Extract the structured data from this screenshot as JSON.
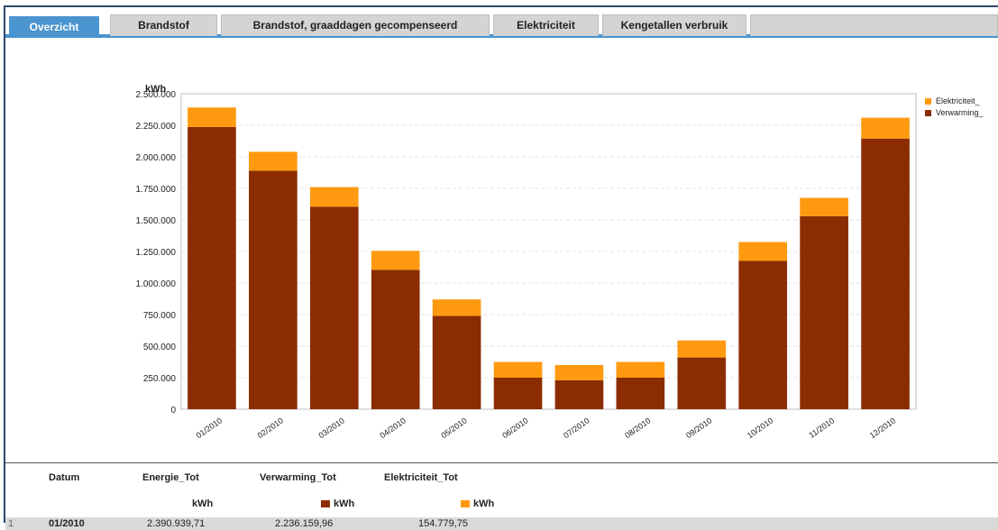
{
  "tabs": [
    {
      "label": "Overzicht"
    },
    {
      "label": "Brandstof"
    },
    {
      "label": "Brandstof, graaddagen gecompenseerd"
    },
    {
      "label": "Elektriciteit"
    },
    {
      "label": "Kengetallen verbruik"
    }
  ],
  "colors": {
    "accent": "#4a94cf",
    "verwarming": "#8b2d00",
    "elektriciteit": "#ff9a10"
  },
  "chart_data": {
    "type": "bar",
    "stacked": true,
    "ylabel": "kWh",
    "ylim": [
      0,
      2500000
    ],
    "yticks": [
      "0",
      "250.000",
      "500.000",
      "750.000",
      "1.000.000",
      "1.250.000",
      "1.500.000",
      "1.750.000",
      "2.000.000",
      "2.250.000",
      "2.500.000"
    ],
    "categories": [
      "01/2010",
      "02/2010",
      "03/2010",
      "04/2010",
      "05/2010",
      "06/2010",
      "07/2010",
      "08/2010",
      "09/2010",
      "10/2010",
      "11/2010",
      "12/2010"
    ],
    "series": [
      {
        "name": "Verwarming_",
        "values": [
          2236160,
          1890000,
          1605000,
          1105000,
          740000,
          250000,
          230000,
          250000,
          410000,
          1175000,
          1530000,
          2145000
        ]
      },
      {
        "name": "Elektriciteit_",
        "values": [
          154780,
          150000,
          155000,
          150000,
          130000,
          125000,
          120000,
          125000,
          135000,
          150000,
          145000,
          165000
        ]
      }
    ],
    "legend": "right",
    "grid": true
  },
  "table": {
    "headers": [
      "Datum",
      "Energie_Tot",
      "Verwarming_Tot",
      "Elektriciteit_Tot"
    ],
    "units": [
      "kWh",
      "kWh",
      "kWh"
    ],
    "rows": [
      {
        "index": "1",
        "datum": "01/2010",
        "energie": "2.390.939,71",
        "verwarming": "2.236.159,96",
        "elektriciteit": "154.779,75"
      }
    ]
  }
}
